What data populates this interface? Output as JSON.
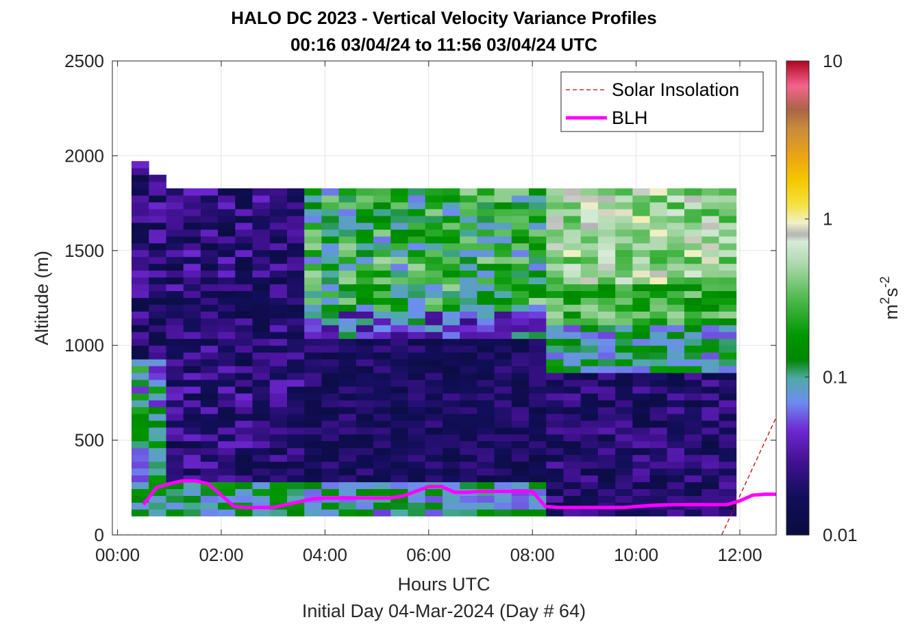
{
  "chart_data": {
    "type": "heatmap",
    "title": "HALO DC 2023 - Vertical Velocity Variance Profiles",
    "subtitle": "00:16 03/04/24 to 11:56 03/04/24  UTC",
    "xlabel": "Hours UTC",
    "xlabel2": "Initial Day 04-Mar-2024 (Day # 64)",
    "ylabel": "Altitude (m)",
    "colorbar_label_base": "m",
    "colorbar_label_sup1": "2",
    "colorbar_label_mid": "s",
    "colorbar_label_sup2": "-2",
    "xlim": [
      -0.1,
      12.7
    ],
    "ylim": [
      0,
      2500
    ],
    "x_ticks": [
      0,
      2,
      4,
      6,
      8,
      10,
      12
    ],
    "x_tick_labels": [
      "00:00",
      "02:00",
      "04:00",
      "06:00",
      "08:00",
      "10:00",
      "12:00"
    ],
    "y_ticks": [
      0,
      500,
      1000,
      1500,
      2000,
      2500
    ],
    "y_tick_labels": [
      "0",
      "500",
      "1000",
      "1500",
      "2000",
      "2500"
    ],
    "color_scale": "log",
    "clim": [
      0.01,
      10
    ],
    "c_ticks": [
      0.01,
      0.1,
      1,
      10
    ],
    "c_tick_labels": [
      "0.01",
      "0.1",
      "1",
      "10"
    ],
    "grid": true,
    "legend_position": "top-right",
    "legend": [
      {
        "name": "Solar Insolation",
        "style": "dashed",
        "color": "#cc0000"
      },
      {
        "name": "BLH",
        "style": "solid",
        "color": "#ff00ff"
      }
    ],
    "heatmap_time_range": [
      0.27,
      11.93
    ],
    "heatmap_altitude_range": [
      100,
      1960
    ],
    "blh": {
      "x": [
        0.5,
        0.75,
        1.0,
        1.25,
        1.5,
        1.75,
        2.0,
        2.25,
        2.5,
        2.75,
        3.0,
        3.25,
        3.5,
        3.75,
        4.0,
        4.25,
        4.5,
        4.75,
        5.0,
        5.25,
        5.5,
        5.75,
        6.0,
        6.25,
        6.5,
        6.75,
        7.0,
        7.25,
        7.5,
        7.75,
        8.0,
        8.25,
        8.5,
        8.75,
        9.0,
        9.25,
        9.5,
        9.75,
        10.0,
        10.25,
        10.5,
        10.75,
        11.0,
        11.25,
        11.5,
        11.75,
        12.0,
        12.25,
        12.5,
        12.7
      ],
      "y": [
        160,
        250,
        270,
        285,
        285,
        270,
        210,
        150,
        145,
        145,
        145,
        160,
        175,
        190,
        195,
        195,
        195,
        195,
        195,
        195,
        205,
        230,
        255,
        255,
        225,
        225,
        230,
        230,
        230,
        230,
        230,
        150,
        145,
        145,
        145,
        145,
        145,
        145,
        150,
        155,
        158,
        160,
        160,
        160,
        160,
        160,
        180,
        210,
        215,
        215
      ]
    },
    "solar_insolation": {
      "x": [
        -0.1,
        11.65,
        12.7
      ],
      "y": [
        0,
        0,
        620
      ]
    }
  }
}
